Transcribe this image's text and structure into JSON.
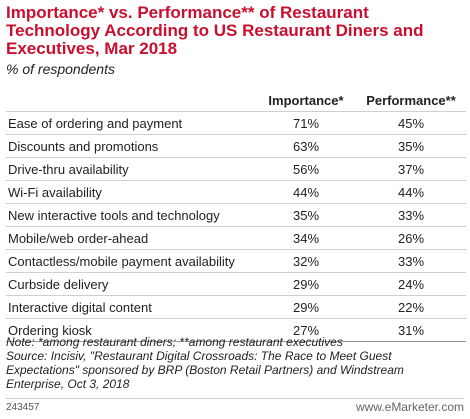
{
  "chart_data": {
    "type": "table",
    "title": "Importance* vs. Performance** of Restaurant Technology According to US Restaurant Diners and Executives, Mar 2018",
    "subtitle": "% of respondents",
    "columns": [
      "",
      "Importance*",
      "Performance**"
    ],
    "rows": [
      {
        "label": "Ease of ordering and payment",
        "importance": "71%",
        "performance": "45%"
      },
      {
        "label": "Discounts and promotions",
        "importance": "63%",
        "performance": "35%"
      },
      {
        "label": "Drive-thru availability",
        "importance": "56%",
        "performance": "37%"
      },
      {
        "label": "Wi-Fi availability",
        "importance": "44%",
        "performance": "44%"
      },
      {
        "label": "New interactive tools and technology",
        "importance": "35%",
        "performance": "33%"
      },
      {
        "label": "Mobile/web order-ahead",
        "importance": "34%",
        "performance": "26%"
      },
      {
        "label": "Contactless/mobile payment availability",
        "importance": "32%",
        "performance": "33%"
      },
      {
        "label": "Curbside delivery",
        "importance": "29%",
        "performance": "24%"
      },
      {
        "label": "Interactive digital content",
        "importance": "29%",
        "performance": "22%"
      },
      {
        "label": "Ordering kiosk",
        "importance": "27%",
        "performance": "31%"
      }
    ],
    "note": "Note: *among restaurant diners; **among restaurant executives",
    "source": "Source: Incisiv, \"Restaurant Digital Crossroads: The Race to Meet Guest Expectations\" sponsored by BRP (Boston Retail Partners) and Windstream Enterprise, Oct 3, 2018",
    "chart_id": "243457",
    "brand": "www.eMarketer.com"
  },
  "colors": {
    "title": "#c8102e",
    "row_divider": "#cfcfcf"
  }
}
